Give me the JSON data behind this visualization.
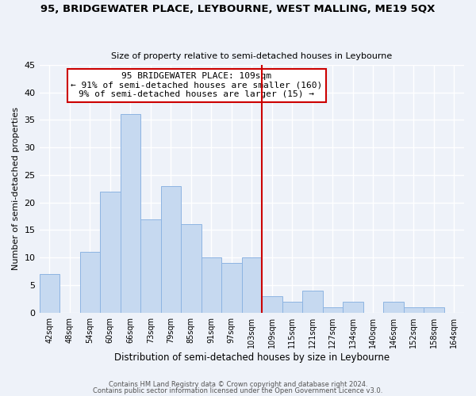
{
  "title": "95, BRIDGEWATER PLACE, LEYBOURNE, WEST MALLING, ME19 5QX",
  "subtitle": "Size of property relative to semi-detached houses in Leybourne",
  "xlabel": "Distribution of semi-detached houses by size in Leybourne",
  "ylabel": "Number of semi-detached properties",
  "bar_labels": [
    "42sqm",
    "48sqm",
    "54sqm",
    "60sqm",
    "66sqm",
    "73sqm",
    "79sqm",
    "85sqm",
    "91sqm",
    "97sqm",
    "103sqm",
    "109sqm",
    "115sqm",
    "121sqm",
    "127sqm",
    "134sqm",
    "140sqm",
    "146sqm",
    "152sqm",
    "158sqm",
    "164sqm"
  ],
  "bar_values": [
    7,
    0,
    11,
    22,
    36,
    17,
    23,
    16,
    10,
    9,
    10,
    3,
    2,
    4,
    1,
    2,
    0,
    2,
    1,
    1,
    0
  ],
  "bar_color": "#c6d9f0",
  "bar_edge_color": "#8db4e2",
  "vline_x_label": "109sqm",
  "vline_color": "#cc0000",
  "annotation_title": "95 BRIDGEWATER PLACE: 109sqm",
  "annotation_line1": "← 91% of semi-detached houses are smaller (160)",
  "annotation_line2": "9% of semi-detached houses are larger (15) →",
  "ylim": [
    0,
    45
  ],
  "yticks": [
    0,
    5,
    10,
    15,
    20,
    25,
    30,
    35,
    40,
    45
  ],
  "footer1": "Contains HM Land Registry data © Crown copyright and database right 2024.",
  "footer2": "Contains public sector information licensed under the Open Government Licence v3.0.",
  "background_color": "#eef2f9"
}
